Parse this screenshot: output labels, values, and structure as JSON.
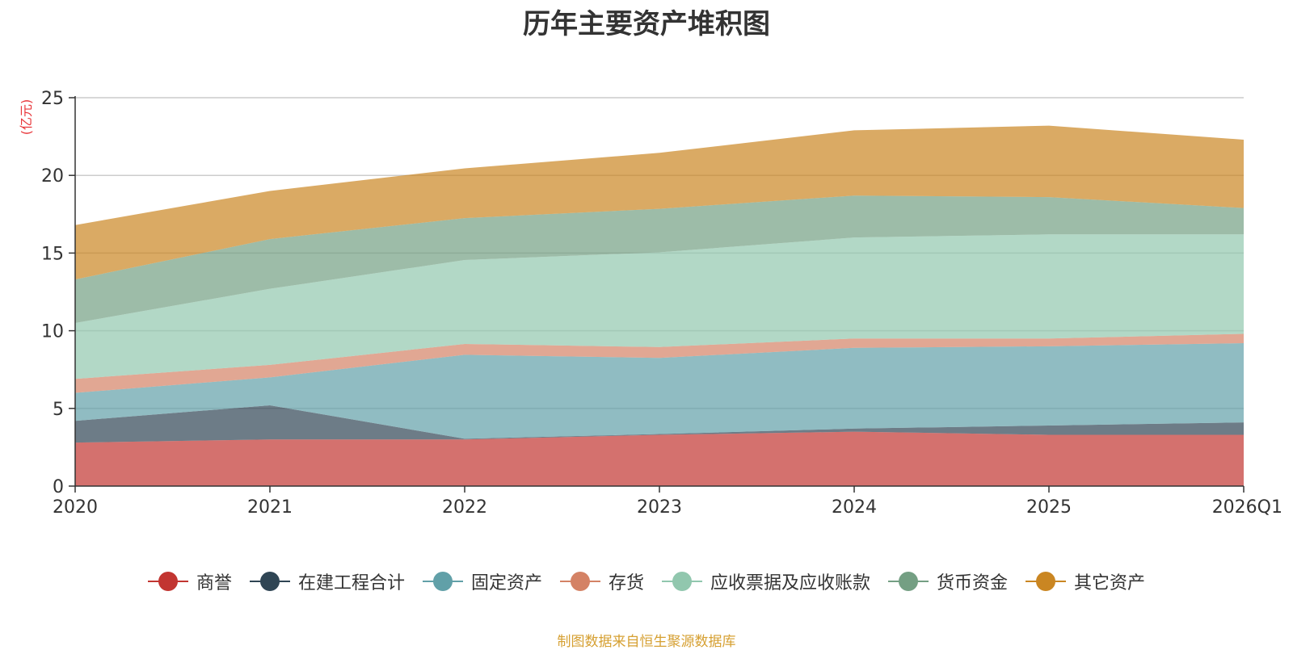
{
  "chart_data": {
    "type": "area",
    "stacked": true,
    "title": "历年主要资产堆积图",
    "ylabel": "(亿元)",
    "xlabel": "",
    "ylim": [
      0,
      25
    ],
    "yticks": [
      0,
      5,
      10,
      15,
      20,
      25
    ],
    "grid": true,
    "legend_position": "bottom",
    "categories": [
      "2020",
      "2021",
      "2022",
      "2023",
      "2024",
      "2025",
      "2026Q1"
    ],
    "series": [
      {
        "name": "商誉",
        "color": "#c23531",
        "values": [
          2.8,
          3.0,
          3.0,
          3.3,
          3.5,
          3.3,
          3.3
        ]
      },
      {
        "name": "在建工程合计",
        "color": "#2f4554",
        "values": [
          1.4,
          2.2,
          0.05,
          0.05,
          0.2,
          0.6,
          0.8
        ]
      },
      {
        "name": "固定资产",
        "color": "#61a0a8",
        "values": [
          1.8,
          1.8,
          5.4,
          4.9,
          5.2,
          5.1,
          5.1
        ]
      },
      {
        "name": "存货",
        "color": "#d48265",
        "values": [
          0.9,
          0.8,
          0.7,
          0.7,
          0.6,
          0.5,
          0.6
        ]
      },
      {
        "name": "应收票据及应收账款",
        "color": "#91c7ae",
        "values": [
          3.6,
          4.9,
          5.4,
          6.1,
          6.5,
          6.7,
          6.4
        ]
      },
      {
        "name": "货币资金",
        "color": "#749f83",
        "values": [
          2.8,
          3.2,
          2.7,
          2.8,
          2.7,
          2.4,
          1.7
        ]
      },
      {
        "name": "其它资产",
        "color": "#ca8622",
        "values": [
          3.5,
          3.1,
          3.2,
          3.6,
          4.2,
          4.6,
          4.4
        ]
      }
    ]
  },
  "source_note": "制图数据来自恒生聚源数据库"
}
